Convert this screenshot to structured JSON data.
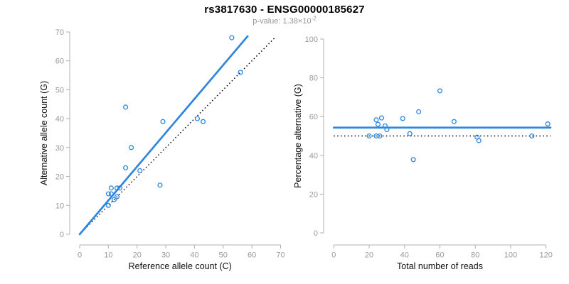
{
  "header": {
    "title": "rs3817630 - ENSG00000185627",
    "pvalue_prefix": "p-value: 1.38×10",
    "pvalue_exponent": "-2"
  },
  "colors": {
    "accent_blue": "#2E86DE",
    "dotted_black": "#000000",
    "axis_gray": "#b0b0b0",
    "tick_label_gray": "#999999",
    "title_black": "#000000",
    "subtitle_gray": "#949494"
  },
  "chart_data": [
    {
      "type": "scatter",
      "name": "allele-counts",
      "xlabel": "Reference allele count (C)",
      "ylabel": "Alternative allele count (G)",
      "xlim": [
        0,
        70
      ],
      "ylim": [
        0,
        70
      ],
      "xticks": [
        0,
        10,
        20,
        30,
        40,
        50,
        60,
        70
      ],
      "yticks": [
        0,
        10,
        20,
        30,
        40,
        50,
        60,
        70
      ],
      "grid": false,
      "legend": false,
      "points": [
        [
          10,
          10
        ],
        [
          10,
          14
        ],
        [
          11,
          14
        ],
        [
          11,
          16
        ],
        [
          12,
          12
        ],
        [
          13,
          13
        ],
        [
          13,
          16
        ],
        [
          14,
          16
        ],
        [
          16,
          23
        ],
        [
          16,
          44
        ],
        [
          18,
          30
        ],
        [
          21,
          22
        ],
        [
          28,
          17
        ],
        [
          29,
          39
        ],
        [
          41,
          40
        ],
        [
          43,
          39
        ],
        [
          53,
          68
        ],
        [
          56,
          56
        ]
      ],
      "fit_line": {
        "style": "solid",
        "x1": 0,
        "y1": 0,
        "x2": 58.5,
        "y2": 68.5
      },
      "reference_line": {
        "style": "dotted",
        "x1": 0,
        "y1": 0,
        "x2": 68,
        "y2": 68
      }
    },
    {
      "type": "scatter",
      "name": "percentage-alternative",
      "xlabel": "Total number of reads",
      "ylabel": "Percentage alternative (G)",
      "xlim": [
        0,
        120
      ],
      "ylim": [
        0,
        100
      ],
      "xticks": [
        0,
        20,
        40,
        60,
        80,
        100,
        120
      ],
      "yticks": [
        0,
        20,
        40,
        60,
        80,
        100
      ],
      "grid": false,
      "legend": false,
      "points": [
        [
          20,
          50
        ],
        [
          24,
          58.3
        ],
        [
          25,
          56
        ],
        [
          27,
          59.3
        ],
        [
          24,
          50
        ],
        [
          26,
          50
        ],
        [
          29,
          55.2
        ],
        [
          30,
          53.3
        ],
        [
          39,
          59
        ],
        [
          43,
          51.2
        ],
        [
          45,
          37.8
        ],
        [
          48,
          62.5
        ],
        [
          60,
          73.3
        ],
        [
          68,
          57.4
        ],
        [
          81,
          49.4
        ],
        [
          82,
          47.6
        ],
        [
          112,
          50
        ],
        [
          121,
          56.2
        ]
      ],
      "fit_line": {
        "style": "solid",
        "x1": 0,
        "y1": 54.3,
        "x2": 122.5,
        "y2": 54.3
      },
      "reference_line": {
        "style": "dotted",
        "x1": 0,
        "y1": 50,
        "x2": 122.5,
        "y2": 50
      }
    }
  ]
}
